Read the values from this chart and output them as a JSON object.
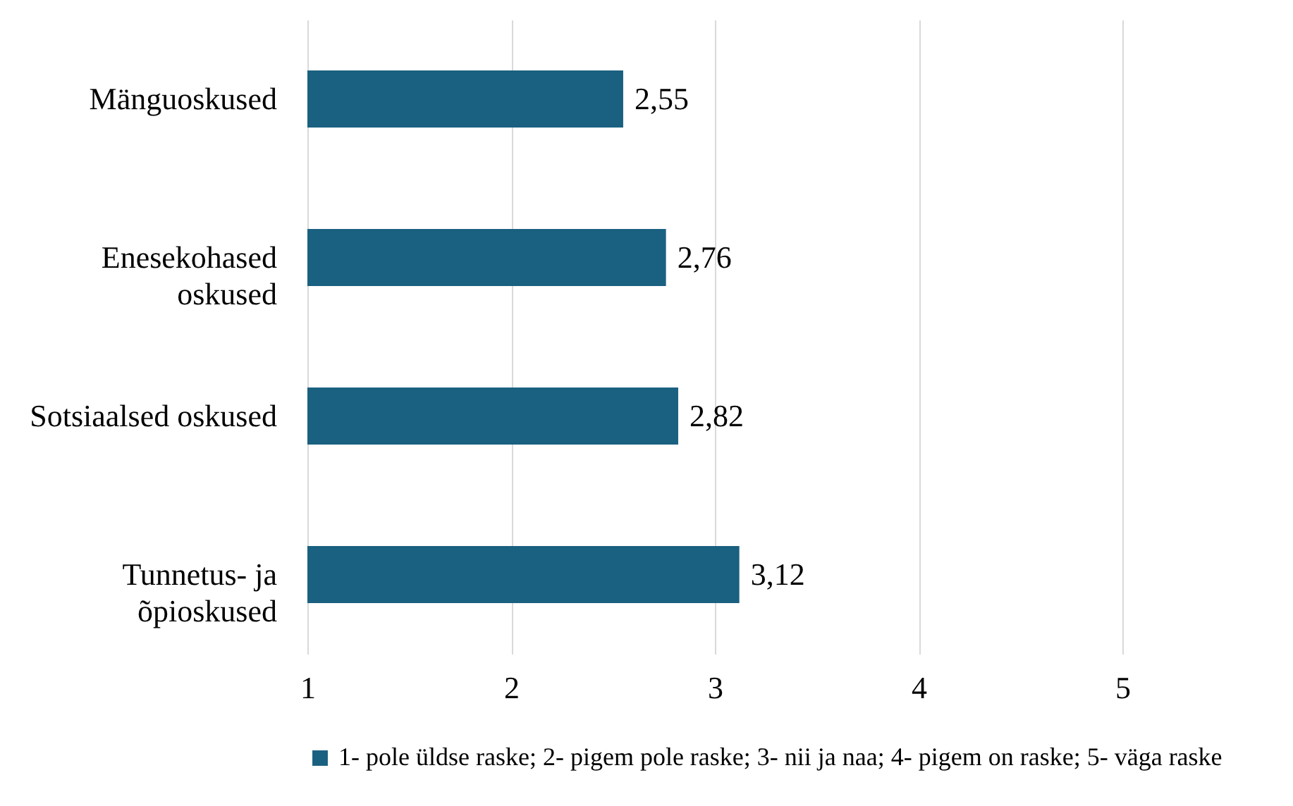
{
  "chart_data": {
    "type": "bar",
    "orientation": "horizontal",
    "categories": [
      "Mänguoskused",
      "Enesekohased oskused",
      "Sotsiaalsed oskused",
      "Tunnetus- ja õpioskused"
    ],
    "series": [
      {
        "name": "1- pole üldse raske; 2- pigem pole raske; 3- nii ja naa; 4- pigem on raske; 5- väga raske",
        "color": "#1a6080",
        "values": [
          2.55,
          2.76,
          2.82,
          3.12
        ],
        "value_labels": [
          "2,55",
          "2,76",
          "2,82",
          "3,12"
        ]
      }
    ],
    "xlim": [
      1,
      5
    ],
    "xticks": [
      1,
      2,
      3,
      4,
      5
    ],
    "grid": "x",
    "legend": "bottom"
  }
}
